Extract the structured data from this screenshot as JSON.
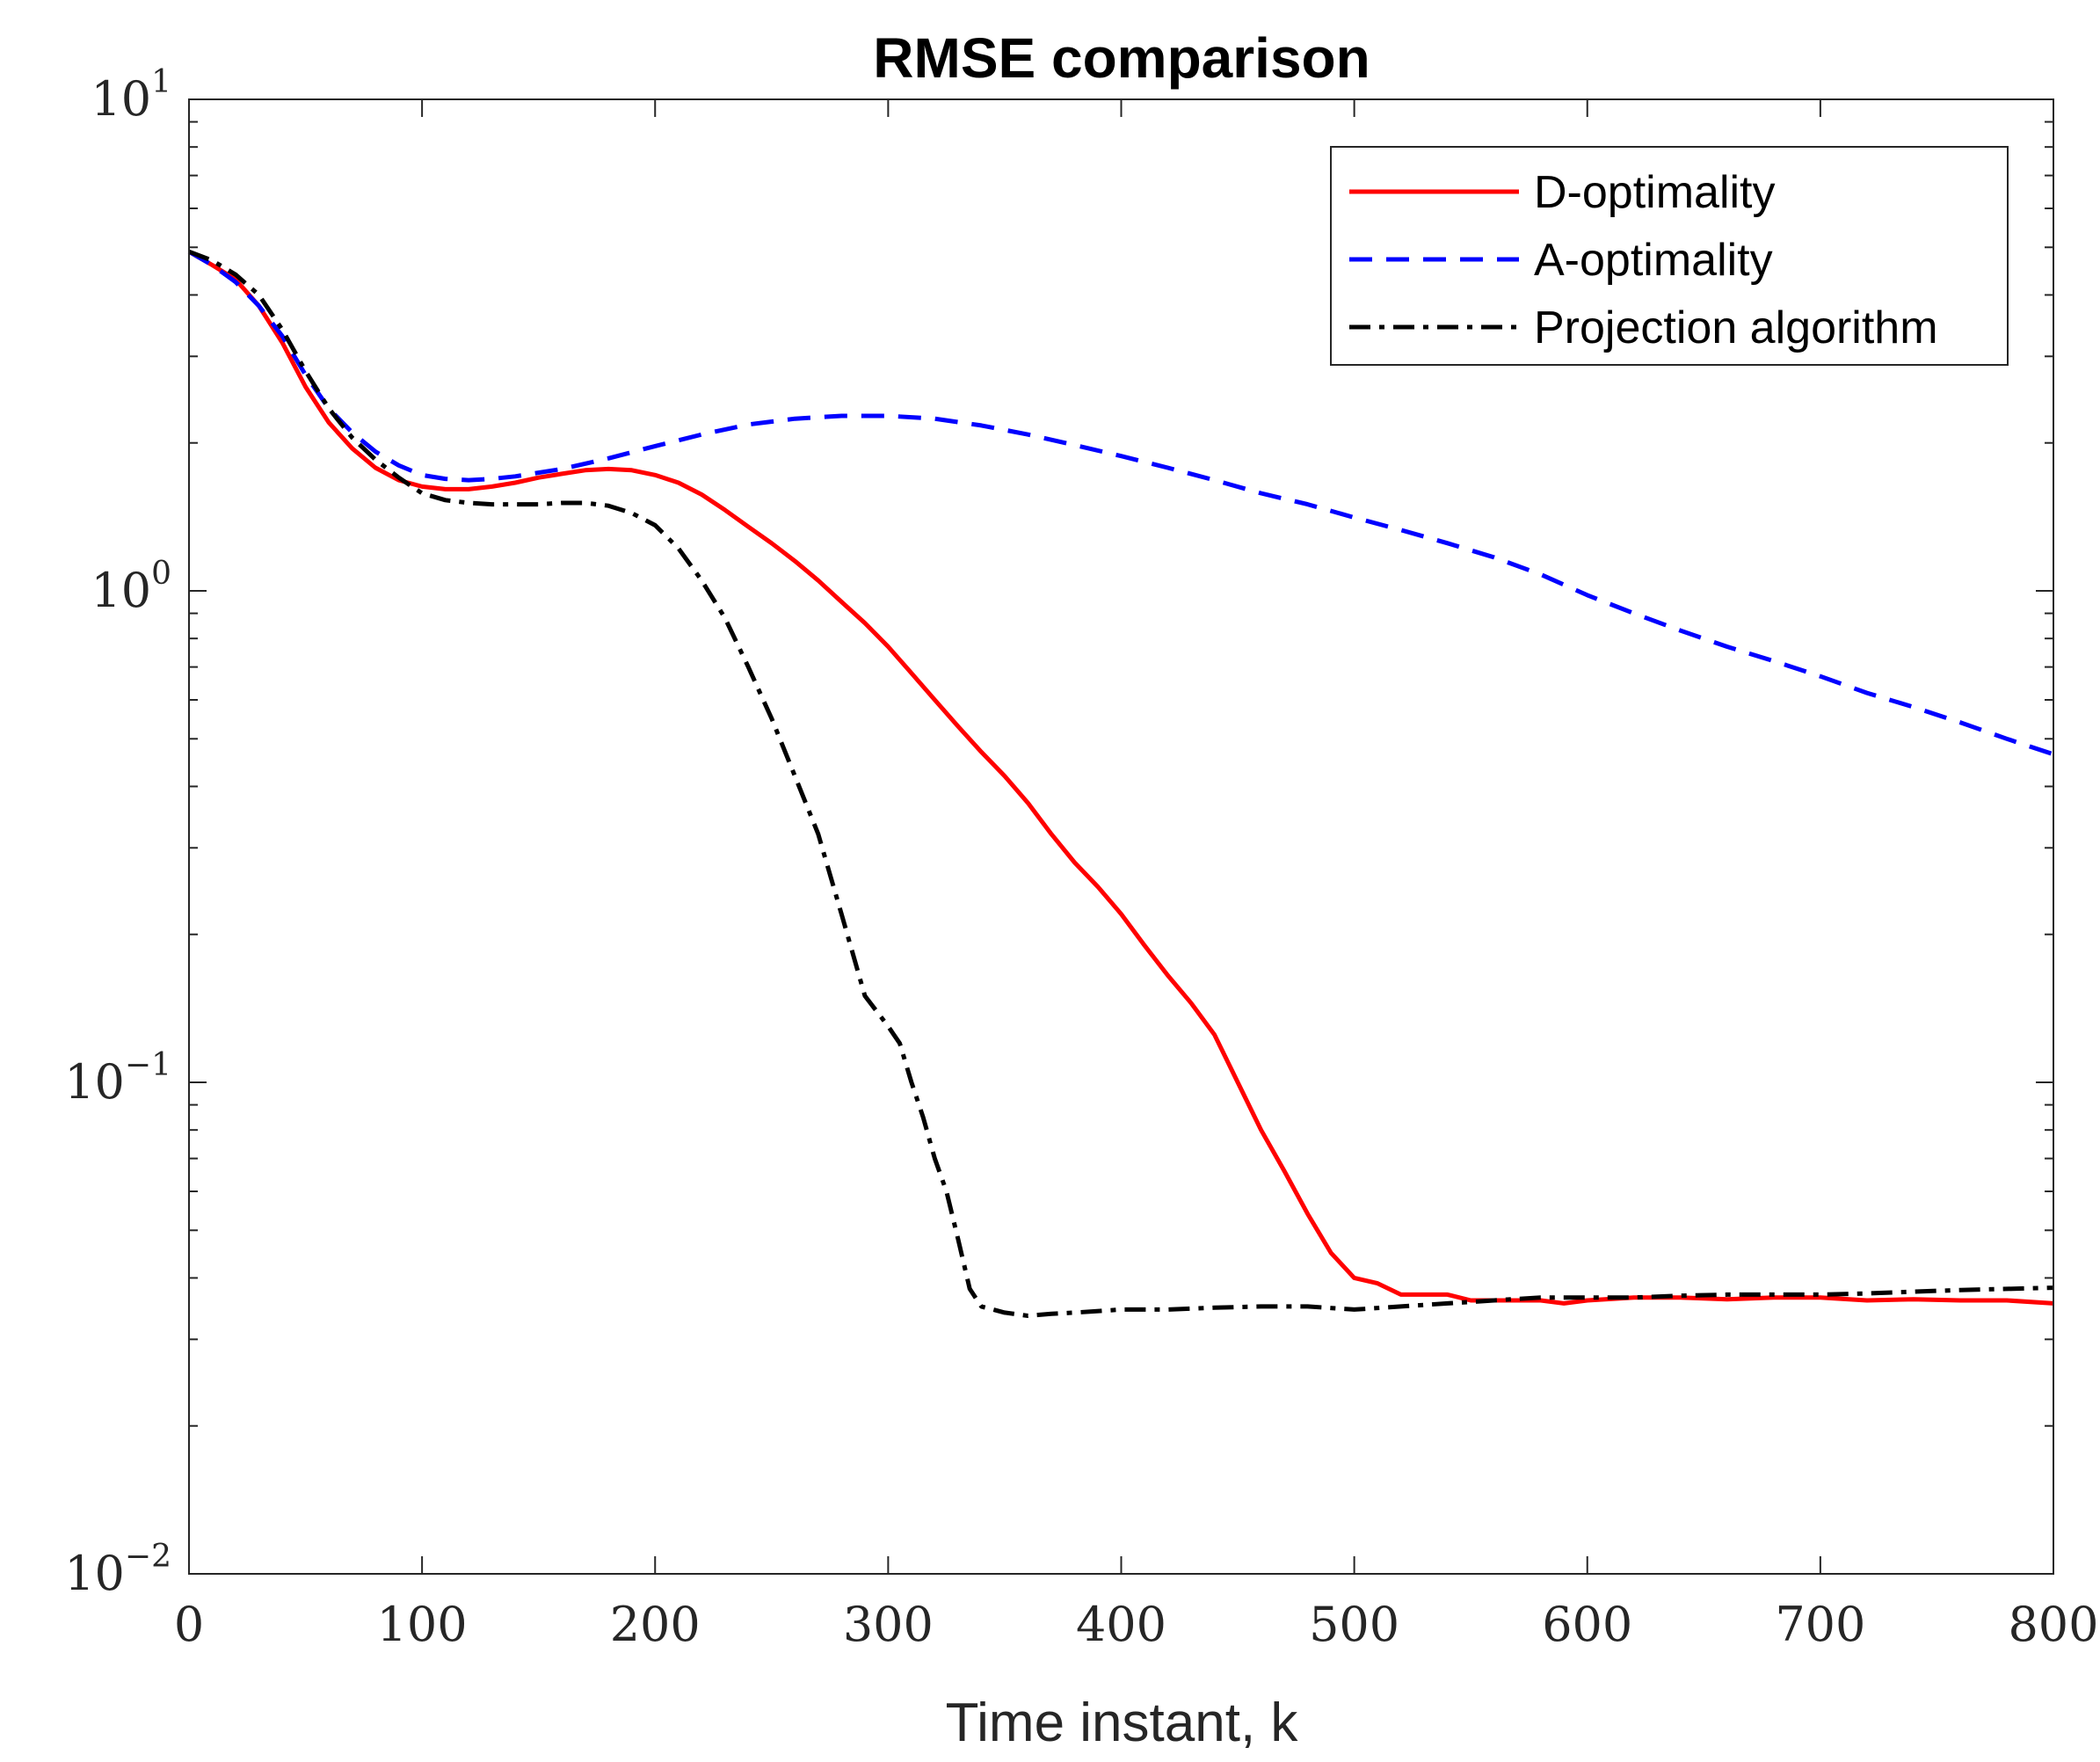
{
  "chart_data": {
    "type": "line",
    "title": "RMSE comparison",
    "xlabel": "Time instant, k",
    "ylabel": "",
    "xlim": [
      0,
      800
    ],
    "ylim": [
      0.01,
      10
    ],
    "yscale": "log",
    "grid": false,
    "legend_position": "top-right",
    "x_ticks": [
      {
        "value": 0,
        "label": "0"
      },
      {
        "value": 100,
        "label": "100"
      },
      {
        "value": 200,
        "label": "200"
      },
      {
        "value": 300,
        "label": "300"
      },
      {
        "value": 400,
        "label": "400"
      },
      {
        "value": 500,
        "label": "500"
      },
      {
        "value": 600,
        "label": "600"
      },
      {
        "value": 700,
        "label": "700"
      },
      {
        "value": 800,
        "label": "800"
      }
    ],
    "y_ticks": [
      {
        "value": 10,
        "base": "10",
        "exp": "1"
      },
      {
        "value": 1,
        "base": "10",
        "exp": "0"
      },
      {
        "value": 0.1,
        "base": "10",
        "exp": "−1"
      },
      {
        "value": 0.01,
        "base": "10",
        "exp": "−2"
      }
    ],
    "series": [
      {
        "name": "D-optimality",
        "color": "#ff0000",
        "style": "solid",
        "x": [
          0,
          10,
          20,
          30,
          40,
          50,
          60,
          70,
          80,
          90,
          100,
          110,
          120,
          130,
          140,
          150,
          160,
          170,
          180,
          190,
          200,
          210,
          220,
          230,
          240,
          250,
          260,
          270,
          280,
          290,
          300,
          310,
          320,
          330,
          340,
          350,
          360,
          370,
          380,
          390,
          400,
          410,
          420,
          430,
          440,
          450,
          460,
          470,
          480,
          490,
          500,
          510,
          520,
          530,
          540,
          550,
          560,
          570,
          580,
          590,
          600,
          620,
          640,
          660,
          680,
          700,
          720,
          740,
          760,
          780,
          800
        ],
        "y": [
          4.9,
          4.6,
          4.3,
          3.8,
          3.2,
          2.6,
          2.2,
          1.95,
          1.78,
          1.68,
          1.63,
          1.61,
          1.61,
          1.63,
          1.66,
          1.7,
          1.73,
          1.76,
          1.77,
          1.76,
          1.72,
          1.66,
          1.57,
          1.46,
          1.35,
          1.25,
          1.15,
          1.05,
          0.95,
          0.86,
          0.77,
          0.68,
          0.6,
          0.53,
          0.47,
          0.42,
          0.37,
          0.32,
          0.28,
          0.25,
          0.22,
          0.19,
          0.165,
          0.145,
          0.125,
          0.1,
          0.08,
          0.066,
          0.054,
          0.045,
          0.04,
          0.039,
          0.037,
          0.037,
          0.037,
          0.036,
          0.036,
          0.036,
          0.036,
          0.0355,
          0.036,
          0.0365,
          0.0365,
          0.0362,
          0.0365,
          0.0365,
          0.036,
          0.0362,
          0.036,
          0.036,
          0.0355
        ]
      },
      {
        "name": "A-optimality",
        "color": "#0000ff",
        "style": "dashed",
        "x": [
          0,
          10,
          20,
          30,
          40,
          50,
          60,
          70,
          80,
          90,
          100,
          110,
          120,
          130,
          140,
          160,
          180,
          200,
          220,
          240,
          260,
          280,
          300,
          320,
          340,
          360,
          380,
          400,
          420,
          440,
          460,
          480,
          500,
          520,
          540,
          560,
          580,
          600,
          620,
          640,
          660,
          680,
          700,
          720,
          740,
          760,
          780,
          800
        ],
        "y": [
          4.9,
          4.6,
          4.25,
          3.8,
          3.3,
          2.75,
          2.35,
          2.1,
          1.92,
          1.8,
          1.72,
          1.69,
          1.68,
          1.69,
          1.71,
          1.77,
          1.86,
          1.97,
          2.08,
          2.18,
          2.24,
          2.27,
          2.27,
          2.24,
          2.17,
          2.08,
          1.98,
          1.88,
          1.78,
          1.68,
          1.58,
          1.5,
          1.41,
          1.33,
          1.25,
          1.17,
          1.08,
          0.98,
          0.9,
          0.83,
          0.77,
          0.72,
          0.67,
          0.62,
          0.58,
          0.54,
          0.5,
          0.465
        ]
      },
      {
        "name": "Projection algorithm",
        "color": "#000000",
        "style": "dashdot",
        "x": [
          0,
          10,
          20,
          30,
          40,
          50,
          60,
          70,
          80,
          90,
          100,
          110,
          120,
          130,
          140,
          150,
          160,
          170,
          180,
          190,
          200,
          210,
          220,
          230,
          240,
          250,
          260,
          270,
          280,
          290,
          300,
          305,
          310,
          315,
          320,
          325,
          330,
          335,
          340,
          350,
          360,
          370,
          380,
          400,
          420,
          440,
          460,
          480,
          500,
          520,
          540,
          560,
          580,
          600,
          620,
          640,
          660,
          680,
          700,
          720,
          740,
          760,
          780,
          800
        ],
        "y": [
          4.9,
          4.7,
          4.4,
          4.0,
          3.4,
          2.8,
          2.35,
          2.05,
          1.85,
          1.7,
          1.58,
          1.53,
          1.51,
          1.5,
          1.5,
          1.5,
          1.51,
          1.51,
          1.49,
          1.44,
          1.36,
          1.22,
          1.05,
          0.88,
          0.7,
          0.55,
          0.42,
          0.32,
          0.22,
          0.15,
          0.13,
          0.12,
          0.1,
          0.085,
          0.07,
          0.06,
          0.048,
          0.038,
          0.035,
          0.034,
          0.0335,
          0.0338,
          0.034,
          0.0345,
          0.0345,
          0.0348,
          0.035,
          0.035,
          0.0345,
          0.035,
          0.0355,
          0.036,
          0.0365,
          0.0365,
          0.0365,
          0.0368,
          0.037,
          0.037,
          0.037,
          0.0372,
          0.0375,
          0.0378,
          0.038,
          0.0382
        ]
      }
    ]
  }
}
